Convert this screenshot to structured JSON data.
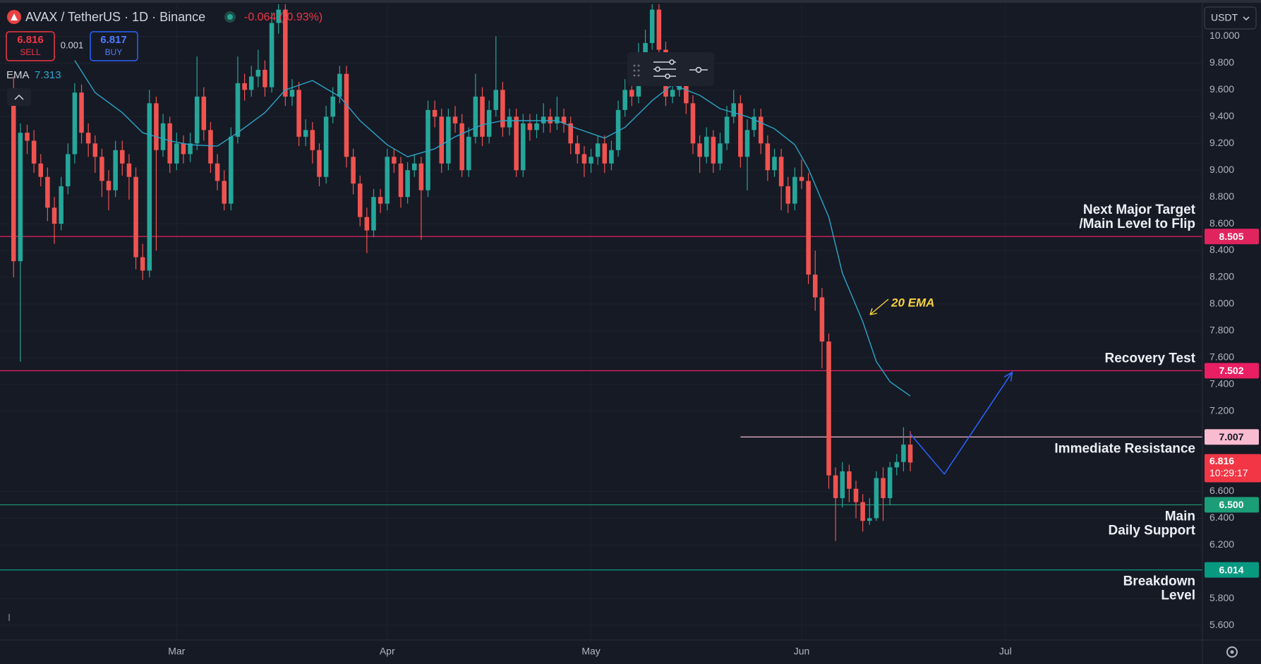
{
  "header": {
    "symbol": "AVAX / TetherUS · 1D · Binance",
    "change": "-0.064 (-0.93%)",
    "sell_price": "6.816",
    "sell": "SELL",
    "spread": "0.001",
    "buy_price": "6.817",
    "buy": "BUY",
    "currency": "USDT"
  },
  "chart_data": {
    "type": "candlestick",
    "xlim": [
      0,
      177
    ],
    "ylim": [
      5.49,
      10.24
    ],
    "xticks": [
      {
        "value": 26,
        "label": "Mar"
      },
      {
        "value": 57,
        "label": "Apr"
      },
      {
        "value": 87,
        "label": "May"
      },
      {
        "value": 118,
        "label": "Jun"
      },
      {
        "value": 148,
        "label": "Jul"
      }
    ],
    "yticks": [
      {
        "value": 10.0,
        "label": "10.000"
      },
      {
        "value": 9.8,
        "label": "9.800"
      },
      {
        "value": 9.6,
        "label": "9.600"
      },
      {
        "value": 9.4,
        "label": "9.400"
      },
      {
        "value": 9.2,
        "label": "9.200"
      },
      {
        "value": 9.0,
        "label": "9.000"
      },
      {
        "value": 8.8,
        "label": "8.800"
      },
      {
        "value": 8.6,
        "label": "8.600"
      },
      {
        "value": 8.4,
        "label": "8.400"
      },
      {
        "value": 8.2,
        "label": "8.200"
      },
      {
        "value": 8.0,
        "label": "8.000"
      },
      {
        "value": 7.8,
        "label": "7.800"
      },
      {
        "value": 7.6,
        "label": "7.600"
      },
      {
        "value": 7.4,
        "label": "7.400"
      },
      {
        "value": 7.2,
        "label": "7.200"
      },
      {
        "value": 6.6,
        "label": "6.600"
      },
      {
        "value": 6.4,
        "label": "6.400"
      },
      {
        "value": 6.2,
        "label": "6.200"
      },
      {
        "value": 5.8,
        "label": "5.800"
      },
      {
        "value": 5.6,
        "label": "5.600"
      }
    ],
    "grid": true,
    "up_color": "#26a69a",
    "down_color": "#ef5350",
    "candles": {
      "x": [
        2,
        3,
        4,
        5,
        6,
        7,
        8,
        9,
        10,
        11,
        12,
        13,
        14,
        15,
        16,
        17,
        18,
        19,
        20,
        21,
        22,
        23,
        24,
        25,
        26,
        27,
        28,
        29,
        30,
        31,
        32,
        33,
        34,
        35,
        36,
        37,
        38,
        39,
        40,
        41,
        42,
        43,
        44,
        45,
        46,
        47,
        48,
        49,
        50,
        51,
        52,
        53,
        54,
        55,
        56,
        57,
        58,
        59,
        60,
        61,
        62,
        63,
        64,
        65,
        66,
        67,
        68,
        69,
        70,
        71,
        72,
        73,
        74,
        75,
        76,
        77,
        78,
        79,
        80,
        81,
        82,
        83,
        84,
        85,
        86,
        87,
        88,
        89,
        90,
        91,
        92,
        93,
        94,
        95,
        96,
        97,
        98,
        99,
        100,
        101,
        102,
        103,
        104,
        105,
        106,
        107,
        108,
        109,
        110,
        111,
        112,
        113,
        114,
        115,
        116,
        117,
        118,
        119,
        120,
        121,
        122,
        123,
        124,
        125,
        126,
        127,
        128,
        129,
        130,
        131,
        132,
        133,
        134
      ],
      "open": [
        9.55,
        8.32,
        9.28,
        9.22,
        9.05,
        8.95,
        8.72,
        8.6,
        8.88,
        9.12,
        9.58,
        9.28,
        9.2,
        9.1,
        8.92,
        8.85,
        9.15,
        9.05,
        8.95,
        8.35,
        8.25,
        9.5,
        9.15,
        9.35,
        9.05,
        9.2,
        9.12,
        9.2,
        9.55,
        9.3,
        9.05,
        8.92,
        8.75,
        9.25,
        9.65,
        9.6,
        9.7,
        9.75,
        9.62,
        10.1,
        10.2,
        9.55,
        9.6,
        9.25,
        9.3,
        9.15,
        8.95,
        9.4,
        9.55,
        9.72,
        9.1,
        8.9,
        8.65,
        8.55,
        8.8,
        8.75,
        9.1,
        9.05,
        8.8,
        9.0,
        9.05,
        8.85,
        9.45,
        9.4,
        9.05,
        9.4,
        9.35,
        9.0,
        9.25,
        9.55,
        9.25,
        9.45,
        9.6,
        9.32,
        9.4,
        9.0,
        9.35,
        9.3,
        9.35,
        9.4,
        9.35,
        9.4,
        9.35,
        9.2,
        9.12,
        9.05,
        9.1,
        9.2,
        9.05,
        9.15,
        9.45,
        9.6,
        9.55,
        9.7,
        9.95,
        10.2,
        9.9,
        9.55,
        9.6,
        9.75,
        9.5,
        9.2,
        9.1,
        9.25,
        9.05,
        9.2,
        9.4,
        9.5,
        9.1,
        9.3,
        9.4,
        9.2,
        9.0,
        9.1,
        8.88,
        8.75,
        8.95,
        8.92,
        8.22,
        8.05,
        7.72,
        6.72,
        6.55,
        6.75,
        6.62,
        6.52,
        6.38,
        6.4,
        6.7,
        6.55,
        6.78,
        6.82,
        6.95
      ],
      "high": [
        9.7,
        9.35,
        9.34,
        9.3,
        9.12,
        9.02,
        8.8,
        8.95,
        9.2,
        9.65,
        9.64,
        9.35,
        9.26,
        9.16,
        9.0,
        9.22,
        9.22,
        9.12,
        9.02,
        8.45,
        9.6,
        9.55,
        9.42,
        9.4,
        9.28,
        9.26,
        9.28,
        9.85,
        9.62,
        9.36,
        9.12,
        9.0,
        9.32,
        9.85,
        9.72,
        9.78,
        9.9,
        9.82,
        10.18,
        10.25,
        10.24,
        9.68,
        9.66,
        9.38,
        9.36,
        9.2,
        9.48,
        9.62,
        9.78,
        9.78,
        9.16,
        8.96,
        8.72,
        8.86,
        8.86,
        9.16,
        9.16,
        9.1,
        9.06,
        9.12,
        9.1,
        9.52,
        9.52,
        9.46,
        9.46,
        9.48,
        9.42,
        9.32,
        9.72,
        9.62,
        9.52,
        10.0,
        9.66,
        9.46,
        9.46,
        9.42,
        9.42,
        9.42,
        9.5,
        9.46,
        9.55,
        9.46,
        9.4,
        9.26,
        9.18,
        9.16,
        9.26,
        9.26,
        9.22,
        9.52,
        9.68,
        9.68,
        9.95,
        10.05,
        10.24,
        10.24,
        9.96,
        9.68,
        9.82,
        9.8,
        9.56,
        9.26,
        9.32,
        9.3,
        9.28,
        9.48,
        9.6,
        9.56,
        9.38,
        9.46,
        9.46,
        9.26,
        9.16,
        9.16,
        8.95,
        9.02,
        9.08,
        8.98,
        8.4,
        8.12,
        7.78,
        6.78,
        6.82,
        6.8,
        6.68,
        6.58,
        6.55,
        6.75,
        6.78,
        6.82,
        6.88,
        7.08,
        7.05
      ],
      "low": [
        8.2,
        7.57,
        9.12,
        8.98,
        8.88,
        8.62,
        8.45,
        8.55,
        8.82,
        9.05,
        9.2,
        9.1,
        8.98,
        8.8,
        8.7,
        8.8,
        8.96,
        8.78,
        8.26,
        8.18,
        8.2,
        8.4,
        9.1,
        8.98,
        9.0,
        9.05,
        9.06,
        9.15,
        9.22,
        8.98,
        8.85,
        8.7,
        8.7,
        9.2,
        9.52,
        9.55,
        9.62,
        9.55,
        9.58,
        10.02,
        9.48,
        9.48,
        9.18,
        9.18,
        9.05,
        8.88,
        8.9,
        9.35,
        9.5,
        9.02,
        8.82,
        8.58,
        8.38,
        8.5,
        8.68,
        8.7,
        8.98,
        8.72,
        8.75,
        8.95,
        8.48,
        8.8,
        9.32,
        8.98,
        9.0,
        9.28,
        8.95,
        8.95,
        9.2,
        9.18,
        9.2,
        9.4,
        9.25,
        9.26,
        8.95,
        8.95,
        9.22,
        9.24,
        9.28,
        9.28,
        9.3,
        9.28,
        9.12,
        9.05,
        8.95,
        8.98,
        9.04,
        8.98,
        9.0,
        9.1,
        9.4,
        9.48,
        9.5,
        9.65,
        9.9,
        9.82,
        9.48,
        9.5,
        9.55,
        9.42,
        9.12,
        8.98,
        9.05,
        8.98,
        9.0,
        9.15,
        9.35,
        9.02,
        8.85,
        9.25,
        9.12,
        8.92,
        8.95,
        8.7,
        8.68,
        8.7,
        8.86,
        8.15,
        7.95,
        7.52,
        6.62,
        6.23,
        6.48,
        6.52,
        6.4,
        6.3,
        6.35,
        6.38,
        6.38,
        6.5,
        6.72,
        6.75,
        6.75
      ],
      "close": [
        8.32,
        9.28,
        9.22,
        9.05,
        8.95,
        8.72,
        8.6,
        8.88,
        9.12,
        9.58,
        9.28,
        9.2,
        9.1,
        8.92,
        8.85,
        9.15,
        9.05,
        8.95,
        8.35,
        8.25,
        9.5,
        9.15,
        9.35,
        9.05,
        9.2,
        9.12,
        9.2,
        9.55,
        9.3,
        9.05,
        8.92,
        8.75,
        9.25,
        9.65,
        9.6,
        9.7,
        9.75,
        9.62,
        10.1,
        10.2,
        9.55,
        9.6,
        9.25,
        9.3,
        9.15,
        8.95,
        9.4,
        9.55,
        9.72,
        9.1,
        8.9,
        8.65,
        8.55,
        8.8,
        8.75,
        9.1,
        9.05,
        8.8,
        9.0,
        9.05,
        8.85,
        9.45,
        9.4,
        9.05,
        9.4,
        9.35,
        9.0,
        9.25,
        9.55,
        9.25,
        9.45,
        9.6,
        9.32,
        9.4,
        9.0,
        9.35,
        9.3,
        9.35,
        9.4,
        9.35,
        9.4,
        9.35,
        9.2,
        9.12,
        9.05,
        9.1,
        9.2,
        9.05,
        9.15,
        9.45,
        9.6,
        9.55,
        9.7,
        9.95,
        10.2,
        9.9,
        9.55,
        9.6,
        9.75,
        9.5,
        9.2,
        9.1,
        9.25,
        9.05,
        9.2,
        9.4,
        9.5,
        9.1,
        9.3,
        9.4,
        9.2,
        9.0,
        9.1,
        8.88,
        8.75,
        8.95,
        8.92,
        8.22,
        8.05,
        7.72,
        6.72,
        6.55,
        6.75,
        6.62,
        6.52,
        6.38,
        6.4,
        6.7,
        6.55,
        6.78,
        6.82,
        6.95,
        6.816
      ]
    },
    "countdown": "10:29:17",
    "price_color": "#f23645",
    "ema": {
      "name": "EMA",
      "color": "#2ba6c8",
      "x": [
        11,
        14,
        18,
        21,
        25,
        28,
        32,
        35,
        39,
        42,
        46,
        50,
        53,
        57,
        60,
        64,
        67,
        71,
        74,
        78,
        82,
        85,
        89,
        92,
        96,
        99,
        103,
        106,
        110,
        114,
        117,
        119,
        122,
        124,
        127,
        129,
        131,
        134
      ],
      "values": [
        9.82,
        9.58,
        9.43,
        9.28,
        9.22,
        9.19,
        9.18,
        9.28,
        9.43,
        9.6,
        9.67,
        9.55,
        9.37,
        9.19,
        9.1,
        9.16,
        9.25,
        9.34,
        9.37,
        9.37,
        9.37,
        9.31,
        9.24,
        9.32,
        9.52,
        9.64,
        9.56,
        9.46,
        9.4,
        9.31,
        9.19,
        9.01,
        8.65,
        8.23,
        7.87,
        7.57,
        7.42,
        7.313
      ]
    },
    "levels": [
      {
        "price": 8.505,
        "text": [
          "Next Major Target",
          "/Main Level to Flip"
        ],
        "color": "#e0245e",
        "text_color": "#ffffff",
        "label_side": "above"
      },
      {
        "price": 7.502,
        "text": [
          "Recovery Test"
        ],
        "color": "#e91e63",
        "text_color": "#ffffff",
        "label_side": "above"
      },
      {
        "price": 7.007,
        "text": [
          "Immediate Resistance"
        ],
        "color": "#f8bbd0",
        "text_color": "#131722",
        "label_side": "below",
        "start_x": 109
      },
      {
        "price": 6.5,
        "price_label": "6.500",
        "text": [
          "Main",
          "Daily Support"
        ],
        "color": "#1b9e77",
        "text_color": "#ffffff",
        "label_side": "below"
      },
      {
        "price": 6.014,
        "text": [
          "Breakdown",
          "Level"
        ],
        "color": "#089981",
        "text_color": "#ffffff",
        "label_side": "below"
      }
    ],
    "projection": {
      "color": "#2962ff",
      "x": [
        134,
        139,
        149
      ],
      "values": [
        7.03,
        6.73,
        7.49
      ]
    },
    "annotations": [
      {
        "text": "20 EMA",
        "color": "#f7d23e"
      }
    ]
  }
}
